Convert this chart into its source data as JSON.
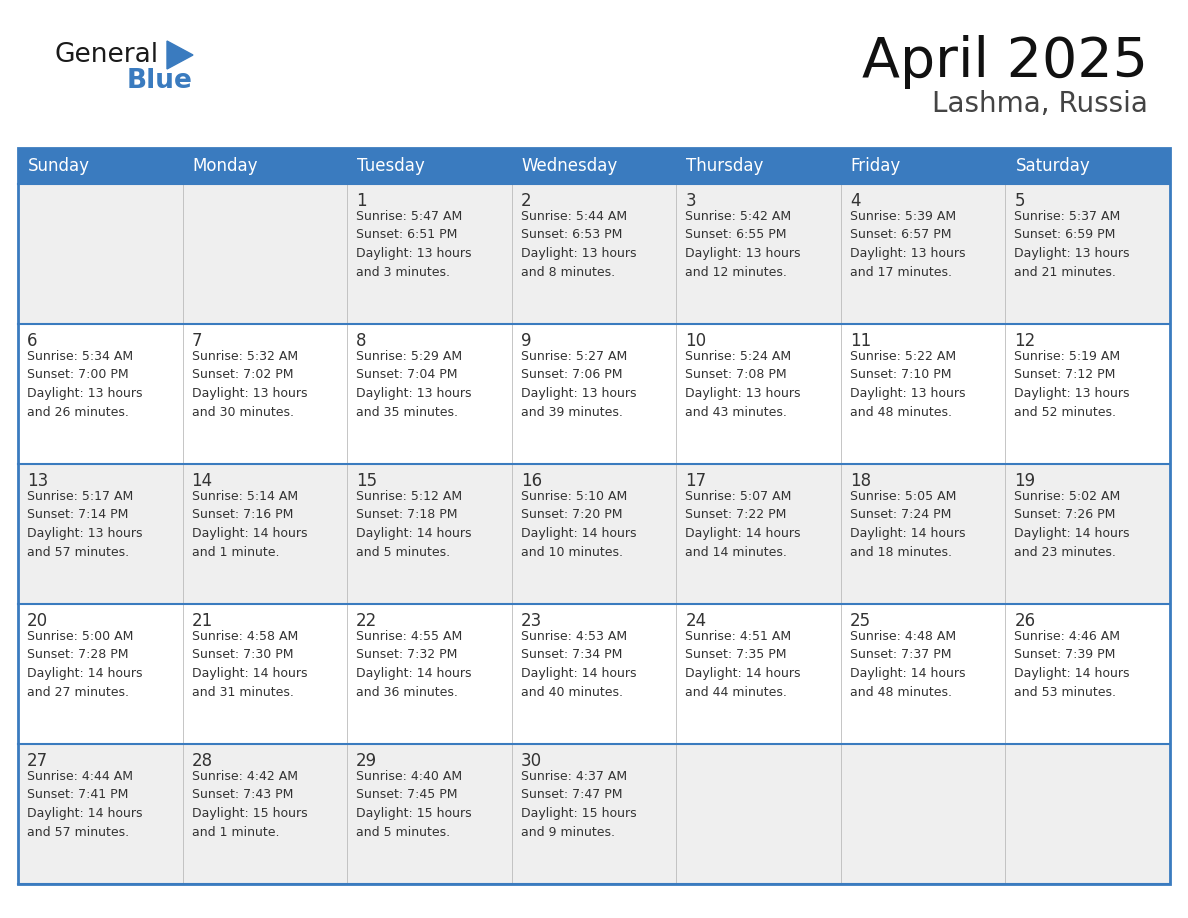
{
  "title": "April 2025",
  "subtitle": "Lashma, Russia",
  "header_color": "#3A7BBF",
  "header_text_color": "#FFFFFF",
  "row_bg_odd": "#EFEFEF",
  "row_bg_even": "#FFFFFF",
  "border_color": "#3A7BBF",
  "text_color": "#333333",
  "days_of_week": [
    "Sunday",
    "Monday",
    "Tuesday",
    "Wednesday",
    "Thursday",
    "Friday",
    "Saturday"
  ],
  "weeks": [
    [
      {
        "day": "",
        "info": ""
      },
      {
        "day": "",
        "info": ""
      },
      {
        "day": "1",
        "info": "Sunrise: 5:47 AM\nSunset: 6:51 PM\nDaylight: 13 hours\nand 3 minutes."
      },
      {
        "day": "2",
        "info": "Sunrise: 5:44 AM\nSunset: 6:53 PM\nDaylight: 13 hours\nand 8 minutes."
      },
      {
        "day": "3",
        "info": "Sunrise: 5:42 AM\nSunset: 6:55 PM\nDaylight: 13 hours\nand 12 minutes."
      },
      {
        "day": "4",
        "info": "Sunrise: 5:39 AM\nSunset: 6:57 PM\nDaylight: 13 hours\nand 17 minutes."
      },
      {
        "day": "5",
        "info": "Sunrise: 5:37 AM\nSunset: 6:59 PM\nDaylight: 13 hours\nand 21 minutes."
      }
    ],
    [
      {
        "day": "6",
        "info": "Sunrise: 5:34 AM\nSunset: 7:00 PM\nDaylight: 13 hours\nand 26 minutes."
      },
      {
        "day": "7",
        "info": "Sunrise: 5:32 AM\nSunset: 7:02 PM\nDaylight: 13 hours\nand 30 minutes."
      },
      {
        "day": "8",
        "info": "Sunrise: 5:29 AM\nSunset: 7:04 PM\nDaylight: 13 hours\nand 35 minutes."
      },
      {
        "day": "9",
        "info": "Sunrise: 5:27 AM\nSunset: 7:06 PM\nDaylight: 13 hours\nand 39 minutes."
      },
      {
        "day": "10",
        "info": "Sunrise: 5:24 AM\nSunset: 7:08 PM\nDaylight: 13 hours\nand 43 minutes."
      },
      {
        "day": "11",
        "info": "Sunrise: 5:22 AM\nSunset: 7:10 PM\nDaylight: 13 hours\nand 48 minutes."
      },
      {
        "day": "12",
        "info": "Sunrise: 5:19 AM\nSunset: 7:12 PM\nDaylight: 13 hours\nand 52 minutes."
      }
    ],
    [
      {
        "day": "13",
        "info": "Sunrise: 5:17 AM\nSunset: 7:14 PM\nDaylight: 13 hours\nand 57 minutes."
      },
      {
        "day": "14",
        "info": "Sunrise: 5:14 AM\nSunset: 7:16 PM\nDaylight: 14 hours\nand 1 minute."
      },
      {
        "day": "15",
        "info": "Sunrise: 5:12 AM\nSunset: 7:18 PM\nDaylight: 14 hours\nand 5 minutes."
      },
      {
        "day": "16",
        "info": "Sunrise: 5:10 AM\nSunset: 7:20 PM\nDaylight: 14 hours\nand 10 minutes."
      },
      {
        "day": "17",
        "info": "Sunrise: 5:07 AM\nSunset: 7:22 PM\nDaylight: 14 hours\nand 14 minutes."
      },
      {
        "day": "18",
        "info": "Sunrise: 5:05 AM\nSunset: 7:24 PM\nDaylight: 14 hours\nand 18 minutes."
      },
      {
        "day": "19",
        "info": "Sunrise: 5:02 AM\nSunset: 7:26 PM\nDaylight: 14 hours\nand 23 minutes."
      }
    ],
    [
      {
        "day": "20",
        "info": "Sunrise: 5:00 AM\nSunset: 7:28 PM\nDaylight: 14 hours\nand 27 minutes."
      },
      {
        "day": "21",
        "info": "Sunrise: 4:58 AM\nSunset: 7:30 PM\nDaylight: 14 hours\nand 31 minutes."
      },
      {
        "day": "22",
        "info": "Sunrise: 4:55 AM\nSunset: 7:32 PM\nDaylight: 14 hours\nand 36 minutes."
      },
      {
        "day": "23",
        "info": "Sunrise: 4:53 AM\nSunset: 7:34 PM\nDaylight: 14 hours\nand 40 minutes."
      },
      {
        "day": "24",
        "info": "Sunrise: 4:51 AM\nSunset: 7:35 PM\nDaylight: 14 hours\nand 44 minutes."
      },
      {
        "day": "25",
        "info": "Sunrise: 4:48 AM\nSunset: 7:37 PM\nDaylight: 14 hours\nand 48 minutes."
      },
      {
        "day": "26",
        "info": "Sunrise: 4:46 AM\nSunset: 7:39 PM\nDaylight: 14 hours\nand 53 minutes."
      }
    ],
    [
      {
        "day": "27",
        "info": "Sunrise: 4:44 AM\nSunset: 7:41 PM\nDaylight: 14 hours\nand 57 minutes."
      },
      {
        "day": "28",
        "info": "Sunrise: 4:42 AM\nSunset: 7:43 PM\nDaylight: 15 hours\nand 1 minute."
      },
      {
        "day": "29",
        "info": "Sunrise: 4:40 AM\nSunset: 7:45 PM\nDaylight: 15 hours\nand 5 minutes."
      },
      {
        "day": "30",
        "info": "Sunrise: 4:37 AM\nSunset: 7:47 PM\nDaylight: 15 hours\nand 9 minutes."
      },
      {
        "day": "",
        "info": ""
      },
      {
        "day": "",
        "info": ""
      },
      {
        "day": "",
        "info": ""
      }
    ]
  ],
  "logo_color_general": "#1a1a1a",
  "logo_color_blue": "#3A7BBF",
  "logo_triangle_color": "#3A7BBF",
  "title_fontsize": 40,
  "subtitle_fontsize": 20,
  "header_fontsize": 12,
  "day_num_fontsize": 12,
  "info_fontsize": 9
}
